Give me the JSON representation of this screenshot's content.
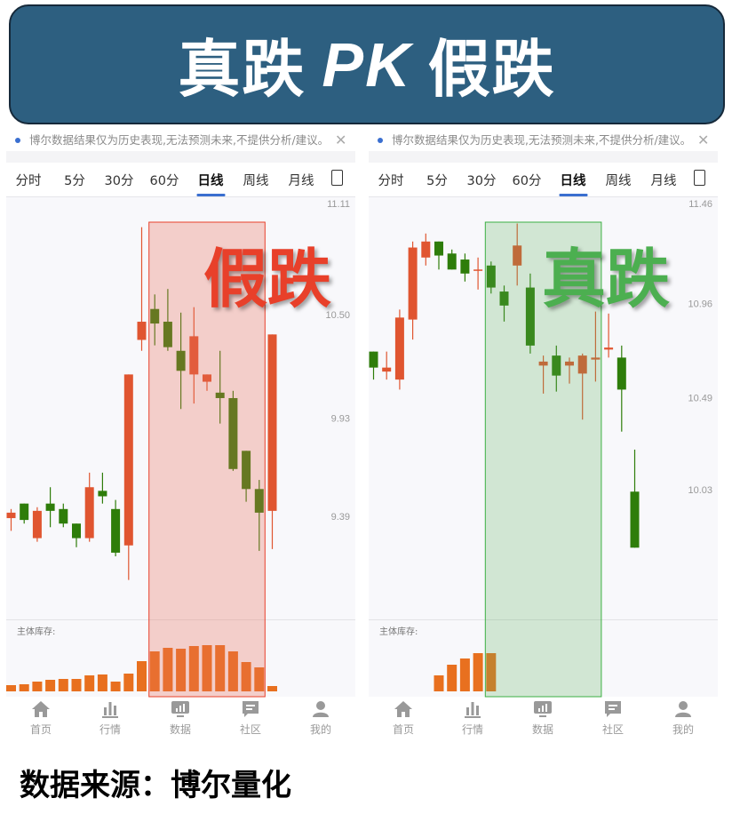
{
  "banner": {
    "left": "真跌",
    "pk": "PK",
    "right": "假跌",
    "bg_color": "#2d5f80"
  },
  "footer": "数据来源：博尔量化",
  "colors": {
    "up": "#e05530",
    "down": "#2e7d0a",
    "false_drop": "#e8402a",
    "true_drop": "#4caf50"
  },
  "panels": [
    {
      "notice": "博尔数据结果仅为历史表现,无法预测未来,不提供分析/建议。",
      "close_icon": "close-icon",
      "tabs": [
        "分时",
        "5分",
        "30分",
        "60分",
        "日线",
        "周线",
        "月线"
      ],
      "active_tab": "日线",
      "overlay_label": "假跌",
      "volume_label": "主体库存:",
      "nav": [
        "首页",
        "行情",
        "数据",
        "社区",
        "我的"
      ]
    },
    {
      "notice": "博尔数据结果仅为历史表现,无法预测未来,不提供分析/建议。",
      "close_icon": "close-icon",
      "tabs": [
        "分时",
        "5分",
        "30分",
        "60分",
        "日线",
        "周线",
        "月线"
      ],
      "active_tab": "日线",
      "overlay_label": "真跌",
      "volume_label": "主体库存:",
      "nav": [
        "首页",
        "行情",
        "数据",
        "社区",
        "我的"
      ]
    }
  ],
  "chart_data": [
    {
      "type": "candlestick",
      "title": "假跌",
      "y_ticks": [
        "11.11",
        "10.50",
        "9.93",
        "9.39"
      ],
      "highlight_range": [
        11,
        19
      ],
      "ohlc": [
        [
          9.38,
          9.43,
          9.31,
          9.41
        ],
        [
          9.46,
          9.46,
          9.35,
          9.37
        ],
        [
          9.27,
          9.44,
          9.25,
          9.42
        ],
        [
          9.46,
          9.55,
          9.33,
          9.42
        ],
        [
          9.43,
          9.46,
          9.33,
          9.35
        ],
        [
          9.35,
          9.35,
          9.22,
          9.27
        ],
        [
          9.27,
          9.63,
          9.25,
          9.55
        ],
        [
          9.53,
          9.63,
          9.46,
          9.5
        ],
        [
          9.43,
          9.48,
          9.17,
          9.19
        ],
        [
          9.23,
          10.17,
          9.04,
          10.17
        ],
        [
          10.36,
          10.98,
          10.3,
          10.46
        ],
        [
          10.53,
          10.61,
          10.33,
          10.45
        ],
        [
          10.46,
          10.64,
          10.3,
          10.32
        ],
        [
          10.3,
          10.51,
          9.98,
          10.19
        ],
        [
          10.17,
          10.54,
          10.01,
          10.38
        ],
        [
          10.13,
          10.17,
          10.08,
          10.17
        ],
        [
          10.07,
          10.3,
          9.9,
          10.04
        ],
        [
          10.04,
          10.08,
          9.64,
          9.65
        ],
        [
          9.75,
          9.75,
          9.47,
          9.54
        ],
        [
          9.54,
          9.59,
          9.2,
          9.41
        ],
        [
          9.42,
          10.39,
          9.21,
          10.39
        ]
      ],
      "volume_relative": [
        7,
        8,
        11,
        13,
        14,
        14,
        18,
        19,
        11,
        20,
        34,
        45,
        49,
        48,
        51,
        52,
        52,
        45,
        33,
        27,
        6
      ]
    },
    {
      "type": "candlestick",
      "title": "真跌",
      "y_ticks": [
        "11.46",
        "10.96",
        "10.49",
        "10.03"
      ],
      "highlight_range": [
        9,
        17
      ],
      "ohlc": [
        [
          10.72,
          10.72,
          10.58,
          10.64
        ],
        [
          10.62,
          10.72,
          10.58,
          10.64
        ],
        [
          10.58,
          10.93,
          10.53,
          10.89
        ],
        [
          10.88,
          11.27,
          10.78,
          11.24
        ],
        [
          11.19,
          11.31,
          11.15,
          11.27
        ],
        [
          11.27,
          11.27,
          11.13,
          11.2
        ],
        [
          11.21,
          11.23,
          11.13,
          11.13
        ],
        [
          11.18,
          11.21,
          11.07,
          11.11
        ],
        [
          11.13,
          11.19,
          11.03,
          11.13
        ],
        [
          11.15,
          11.17,
          11.01,
          11.04
        ],
        [
          11.02,
          11.05,
          10.87,
          10.95
        ],
        [
          11.15,
          11.36,
          11.05,
          11.25
        ],
        [
          11.04,
          11.11,
          10.71,
          10.75
        ],
        [
          10.65,
          10.7,
          10.51,
          10.67
        ],
        [
          10.7,
          10.75,
          10.52,
          10.6
        ],
        [
          10.65,
          10.69,
          10.56,
          10.67
        ],
        [
          10.61,
          10.71,
          10.38,
          10.7
        ],
        [
          10.68,
          10.92,
          10.57,
          10.69
        ],
        [
          10.73,
          10.91,
          10.69,
          10.74
        ],
        [
          10.69,
          10.75,
          10.32,
          10.53
        ],
        [
          10.02,
          10.23,
          9.74,
          9.74
        ]
      ],
      "volume_relative": [
        0,
        0,
        0,
        0,
        0,
        18,
        30,
        37,
        43,
        43,
        0,
        0,
        0,
        0,
        0,
        0,
        0,
        0,
        0,
        0,
        0
      ]
    }
  ]
}
